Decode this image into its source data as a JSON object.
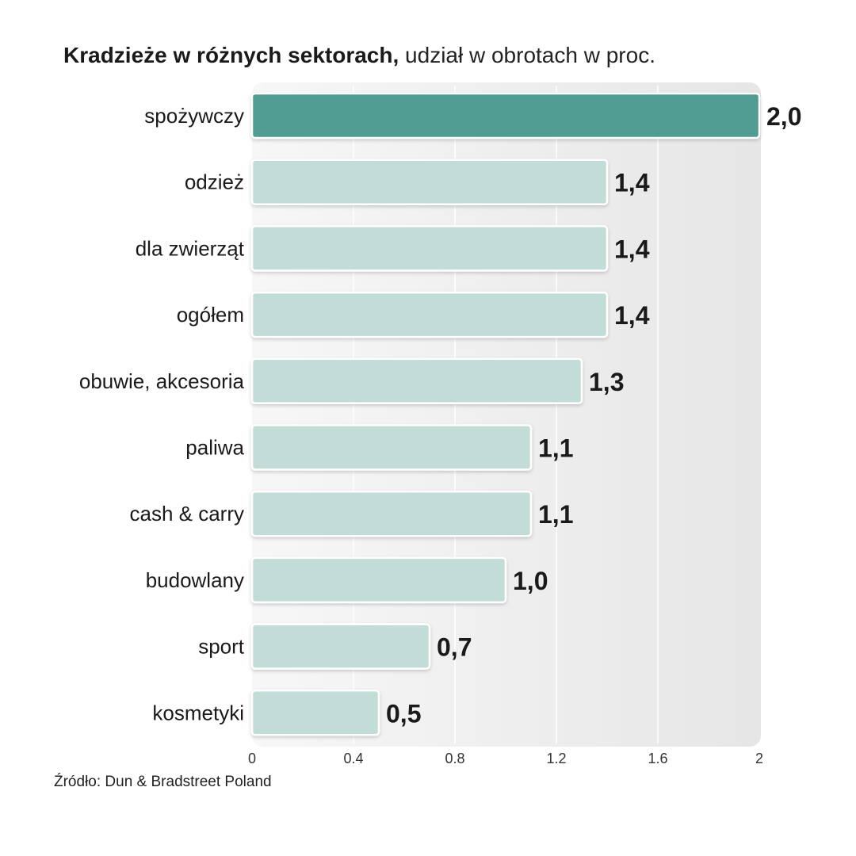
{
  "title": {
    "bold": "Kradzieże w różnych sektorach,",
    "rest": "udział w obrotach w proc."
  },
  "source": "Źródło: Dun & Bradstreet Poland",
  "colors": {
    "highlight": "#4f9d92",
    "bar": "#c2dcd7",
    "plot_bg": "#ececec",
    "grid": "#ffffff"
  },
  "chart_data": {
    "type": "bar",
    "orientation": "horizontal",
    "categories": [
      "spożywczy",
      "odzież",
      "dla zwierząt",
      "ogółem",
      "obuwie, akcesoria",
      "paliwa",
      "cash & carry",
      "budowlany",
      "sport",
      "kosmetyki"
    ],
    "values": [
      2.0,
      1.4,
      1.4,
      1.4,
      1.3,
      1.1,
      1.1,
      1.0,
      0.7,
      0.5
    ],
    "value_labels": [
      "2,0",
      "1,4",
      "1,4",
      "1,4",
      "1,3",
      "1,1",
      "1,1",
      "1,0",
      "0,7",
      "0,5"
    ],
    "xlim": [
      0,
      2
    ],
    "xticks": [
      0,
      0.4,
      0.8,
      1.2,
      1.6,
      2
    ],
    "xtick_labels": [
      "0",
      "0.4",
      "0.8",
      "1.2",
      "1.6",
      "2"
    ],
    "highlighted_category": "spożywczy",
    "grid": "vertical"
  }
}
